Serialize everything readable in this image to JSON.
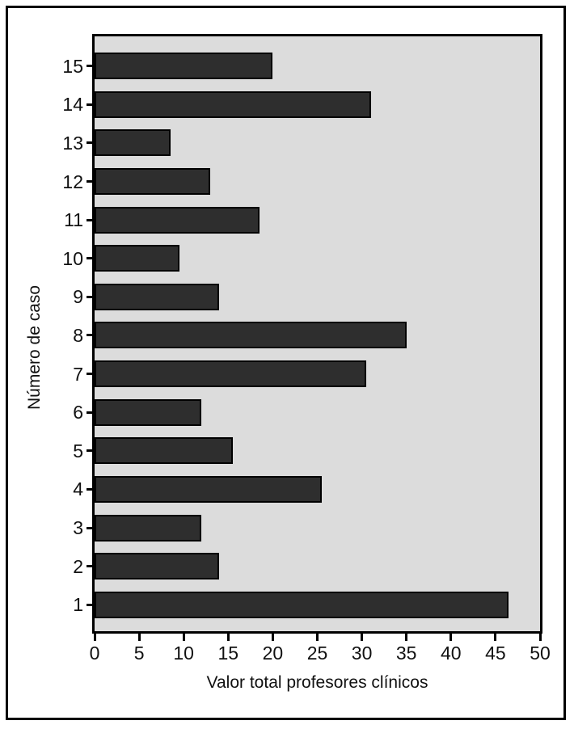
{
  "chart_data": {
    "type": "bar",
    "orientation": "horizontal",
    "title": "",
    "xlabel": "Valor total profesores clínicos",
    "ylabel": "Número de caso",
    "categories": [
      "15",
      "14",
      "13",
      "12",
      "11",
      "10",
      "9",
      "8",
      "7",
      "6",
      "5",
      "4",
      "3",
      "2",
      "1"
    ],
    "values": [
      20,
      31,
      8.5,
      13,
      18.5,
      9.5,
      14,
      35,
      30.5,
      12,
      15.5,
      25.5,
      12,
      14,
      46.5
    ],
    "xlim": [
      0,
      50
    ],
    "xticks": [
      0,
      5,
      10,
      15,
      20,
      25,
      30,
      35,
      40,
      45,
      50
    ],
    "grid": false,
    "legend": false,
    "colors": {
      "bar_fill": "#2e2e2e",
      "bar_outline": "#000000",
      "plot_background": "#dcdcdc",
      "frame": "#000000",
      "page_background": "#ffffff",
      "text": "#111111"
    }
  }
}
